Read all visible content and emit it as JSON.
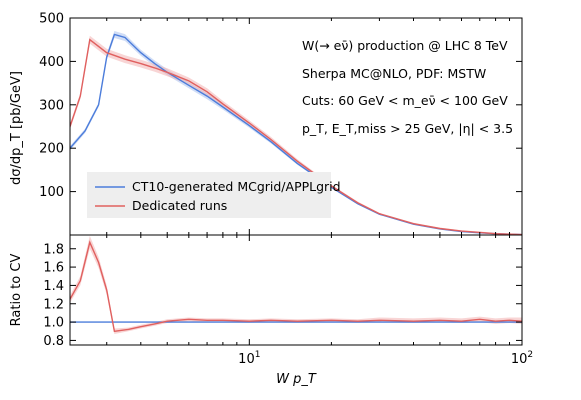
{
  "chart_data": [
    {
      "type": "line",
      "panel": "main",
      "xscale": "log",
      "xlim": [
        2.2,
        100
      ],
      "ylim": [
        0,
        500
      ],
      "ylabel": "dσ/dp_T [pb/GeV]",
      "yticks": [
        100,
        200,
        300,
        400,
        500
      ],
      "ytick_labels": [
        "100",
        "200",
        "300",
        "400",
        "500"
      ],
      "annotations": [
        "W(→ eν̄) production @ LHC 8 TeV",
        "Sherpa MC@NLO, PDF: MSTW",
        "Cuts: 60 GeV < m_eν̄ < 100 GeV",
        "p_T, E_T,miss > 25 GeV, |η| < 3.5"
      ],
      "legend_position": "lower-left",
      "series": [
        {
          "name": "CT10-generated MCgrid/APPLgrid",
          "color": "#4c7ddb",
          "band_color": "#a9c1ee",
          "x": [
            2.2,
            2.5,
            2.8,
            3.0,
            3.2,
            3.5,
            4.0,
            4.5,
            5.0,
            6.0,
            7.0,
            8.0,
            10.0,
            12.0,
            15.0,
            20.0,
            25.0,
            30.0,
            40.0,
            50.0,
            60.0,
            70.0,
            80.0,
            100.0
          ],
          "y": [
            200,
            240,
            300,
            410,
            462,
            455,
            420,
            395,
            375,
            345,
            320,
            295,
            252,
            215,
            165,
            110,
            72,
            48,
            25,
            14,
            8,
            5,
            3,
            1
          ],
          "band": [
            [
              195,
              205
            ],
            [
              235,
              245
            ],
            [
              295,
              305
            ],
            [
              403,
              417
            ],
            [
              454,
              470
            ],
            [
              447,
              463
            ],
            [
              413,
              427
            ],
            [
              388,
              402
            ],
            [
              368,
              382
            ],
            [
              338,
              352
            ],
            [
              313,
              327
            ],
            [
              289,
              301
            ],
            [
              247,
              257
            ],
            [
              211,
              219
            ],
            [
              162,
              168
            ],
            [
              108,
              112
            ],
            [
              70,
              74
            ],
            [
              47,
              49
            ],
            [
              24,
              26
            ],
            [
              13,
              15
            ],
            [
              7,
              9
            ],
            [
              4,
              6
            ],
            [
              2,
              4
            ],
            [
              0,
              2
            ]
          ]
        },
        {
          "name": "Dedicated runs",
          "color": "#e0605f",
          "band_color": "#f3b3b3",
          "x": [
            2.2,
            2.4,
            2.6,
            3.0,
            3.5,
            4.0,
            4.5,
            5.0,
            6.0,
            7.0,
            8.0,
            10.0,
            12.0,
            15.0,
            20.0,
            25.0,
            30.0,
            40.0,
            50.0,
            60.0,
            70.0,
            80.0,
            100.0
          ],
          "y": [
            250,
            320,
            450,
            420,
            405,
            395,
            385,
            375,
            355,
            330,
            302,
            258,
            220,
            170,
            113,
            74,
            49,
            26,
            15,
            9,
            6,
            3,
            1
          ],
          "band": [
            [
              243,
              257
            ],
            [
              313,
              327
            ],
            [
              441,
              459
            ],
            [
              411,
              429
            ],
            [
              396,
              414
            ],
            [
              386,
              404
            ],
            [
              376,
              394
            ],
            [
              366,
              384
            ],
            [
              347,
              363
            ],
            [
              322,
              338
            ],
            [
              295,
              309
            ],
            [
              252,
              264
            ],
            [
              214,
              226
            ],
            [
              165,
              175
            ],
            [
              110,
              116
            ],
            [
              71,
              77
            ],
            [
              47,
              51
            ],
            [
              24,
              28
            ],
            [
              13,
              17
            ],
            [
              7,
              11
            ],
            [
              4,
              8
            ],
            [
              2,
              5
            ],
            [
              0,
              2
            ]
          ]
        }
      ]
    },
    {
      "type": "line",
      "panel": "ratio",
      "xscale": "log",
      "xlim": [
        2.2,
        100
      ],
      "ylim": [
        0.75,
        1.95
      ],
      "xlabel": "W p_T",
      "ylabel": "Ratio to CV",
      "yticks": [
        0.8,
        1.0,
        1.2,
        1.4,
        1.6,
        1.8
      ],
      "ytick_labels": [
        "0.8",
        "1.0",
        "1.2",
        "1.4",
        "1.6",
        "1.8"
      ],
      "xticks": [
        10,
        100
      ],
      "xtick_labels": [
        "10^1",
        "10^2"
      ],
      "series": [
        {
          "name": "CT10-generated MCgrid/APPLgrid",
          "color": "#4c7ddb",
          "band_color": "#a9c1ee",
          "x": [
            2.2,
            100.0
          ],
          "y": [
            1.0,
            1.0
          ],
          "band": [
            [
              0.995,
              1.005
            ],
            [
              0.995,
              1.005
            ]
          ]
        },
        {
          "name": "Dedicated runs",
          "color": "#e0605f",
          "band_color": "#f3b3b3",
          "x": [
            2.2,
            2.4,
            2.6,
            2.8,
            3.0,
            3.2,
            3.6,
            4.0,
            4.5,
            5.0,
            6.0,
            7.0,
            8.0,
            10.0,
            12.0,
            15.0,
            20.0,
            25.0,
            30.0,
            40.0,
            50.0,
            60.0,
            70.0,
            80.0,
            90.0,
            100.0
          ],
          "y": [
            1.25,
            1.45,
            1.87,
            1.65,
            1.35,
            0.9,
            0.92,
            0.95,
            0.98,
            1.01,
            1.03,
            1.02,
            1.02,
            1.01,
            1.02,
            1.01,
            1.02,
            1.01,
            1.02,
            1.01,
            1.02,
            1.01,
            1.03,
            1.01,
            1.02,
            1.01
          ],
          "band": [
            [
              1.21,
              1.29
            ],
            [
              1.4,
              1.5
            ],
            [
              1.8,
              1.94
            ],
            [
              1.59,
              1.71
            ],
            [
              1.3,
              1.4
            ],
            [
              0.87,
              0.93
            ],
            [
              0.9,
              0.94
            ],
            [
              0.93,
              0.97
            ],
            [
              0.96,
              1.0
            ],
            [
              0.99,
              1.03
            ],
            [
              1.01,
              1.05
            ],
            [
              1.0,
              1.04
            ],
            [
              1.0,
              1.04
            ],
            [
              0.99,
              1.03
            ],
            [
              1.0,
              1.04
            ],
            [
              0.99,
              1.03
            ],
            [
              1.0,
              1.04
            ],
            [
              0.99,
              1.03
            ],
            [
              1.0,
              1.05
            ],
            [
              0.99,
              1.04
            ],
            [
              1.0,
              1.05
            ],
            [
              0.99,
              1.04
            ],
            [
              1.0,
              1.06
            ],
            [
              0.98,
              1.04
            ],
            [
              0.99,
              1.05
            ],
            [
              0.98,
              1.05
            ]
          ]
        }
      ]
    }
  ]
}
